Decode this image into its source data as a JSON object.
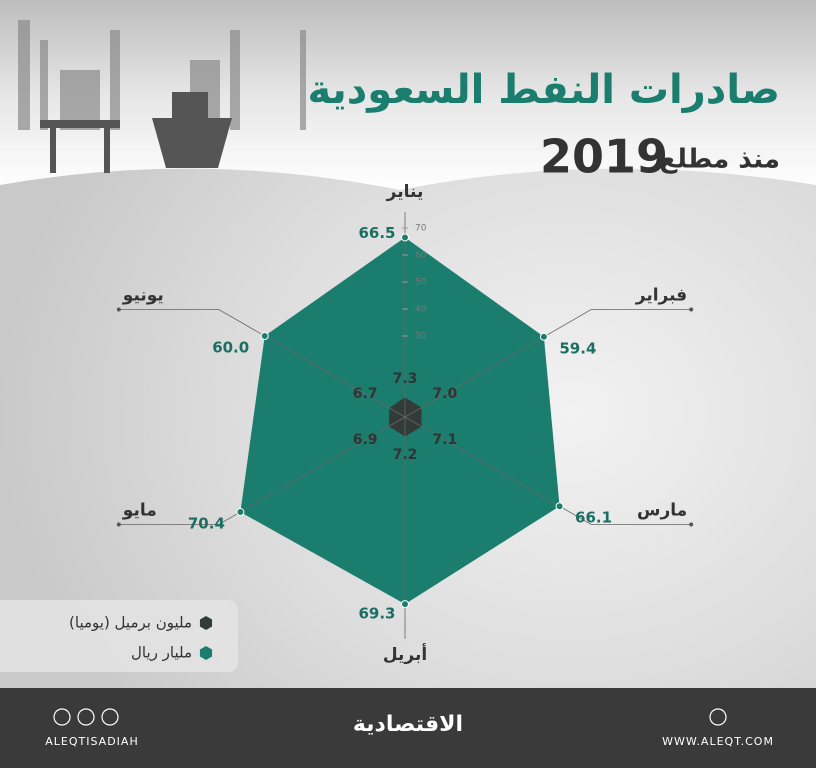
{
  "chart_data": {
    "type": "radar",
    "title": "صادرات النفط السعودية",
    "subtitle": "منذ مطلع",
    "subtitle_year": "2019",
    "categories": [
      "يناير",
      "فبراير",
      "مارس",
      "أبريل",
      "مايو",
      "يونيو"
    ],
    "series": [
      {
        "name": "مليار ريال",
        "color": "#1b7d6d",
        "values": [
          66.5,
          59.4,
          66.1,
          69.3,
          70.4,
          60.0
        ],
        "value_labels": [
          "66.5",
          "59.4",
          "66.1",
          "69.3",
          "70.4",
          "60.0"
        ]
      },
      {
        "name": "مليون برميل (يوميا)",
        "color": "#333b38",
        "values": [
          7.3,
          7.0,
          7.1,
          7.2,
          6.9,
          6.7
        ],
        "value_labels": [
          "7.3",
          "7.0",
          "7.1",
          "7.2",
          "6.9",
          "6.7"
        ]
      }
    ],
    "rlim": [
      0,
      70
    ],
    "rticks": [
      30,
      40,
      50,
      60,
      70
    ],
    "legend": "bottom-left"
  },
  "footer": {
    "social": "ALEQTISADIAH",
    "brand": "الاقتصادية",
    "website": "WWW.ALEQT.COM"
  }
}
